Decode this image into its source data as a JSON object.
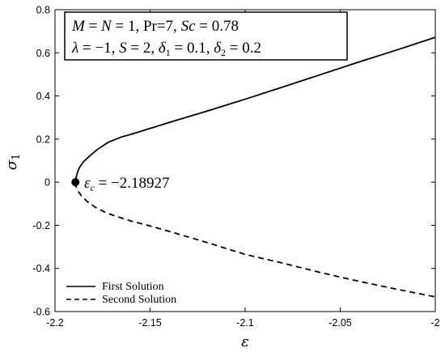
{
  "chart_data": {
    "type": "line",
    "xlabel": "ε",
    "ylabel": "σ",
    "ylabel_sub": "1",
    "xlim": [
      -2.2,
      -2.0
    ],
    "ylim": [
      -0.6,
      0.8
    ],
    "x_ticks": [
      -2.2,
      -2.15,
      -2.1,
      -2.05,
      -2.0
    ],
    "x_tick_labels": [
      "-2.2",
      "-2.15",
      "-2.1",
      "-2.05",
      "-2"
    ],
    "y_ticks": [
      -0.6,
      -0.4,
      -0.2,
      0,
      0.2,
      0.4,
      0.6,
      0.8
    ],
    "y_tick_labels": [
      "-0.6",
      "-0.4",
      "-0.2",
      "0",
      "0.2",
      "0.4",
      "0.6",
      "0.8"
    ],
    "grid": false,
    "legend_position": "bottom-left",
    "series": [
      {
        "name": "First Solution",
        "style": "solid",
        "color": "#000000",
        "x": [
          -2.18927,
          -2.189,
          -2.1885,
          -2.188,
          -2.187,
          -2.185,
          -2.182,
          -2.178,
          -2.172,
          -2.165,
          -2.16,
          -2.14,
          -2.12,
          -2.1,
          -2.08,
          -2.06,
          -2.04,
          -2.02,
          -2.0
        ],
        "y": [
          0,
          0.02,
          0.035,
          0.05,
          0.07,
          0.095,
          0.12,
          0.15,
          0.185,
          0.21,
          0.222,
          0.277,
          0.33,
          0.385,
          0.442,
          0.5,
          0.558,
          0.614,
          0.672
        ]
      },
      {
        "name": "Second Solution",
        "style": "dashed",
        "color": "#000000",
        "x": [
          -2.18927,
          -2.189,
          -2.188,
          -2.186,
          -2.183,
          -2.179,
          -2.174,
          -2.168,
          -2.16,
          -2.15,
          -2.14,
          -2.12,
          -2.1,
          -2.08,
          -2.06,
          -2.04,
          -2.02,
          -2.0
        ],
        "y": [
          0,
          -0.02,
          -0.04,
          -0.065,
          -0.09,
          -0.115,
          -0.138,
          -0.158,
          -0.18,
          -0.203,
          -0.228,
          -0.28,
          -0.335,
          -0.376,
          -0.42,
          -0.46,
          -0.497,
          -0.532
        ]
      }
    ],
    "critical_point": {
      "x": -2.18927,
      "y": 0,
      "label": "ε_c = −2.18927"
    },
    "parameters": {
      "line1": "M = N = 1, Pr=7, Sc = 0.78",
      "line2": "λ = −1, S = 2, δ1 = 0.1, δ2 = 0.2"
    }
  }
}
